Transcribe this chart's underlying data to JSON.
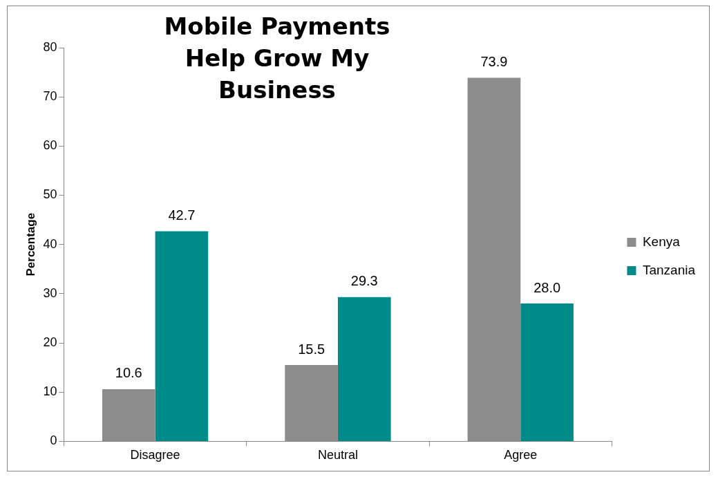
{
  "chart_data": {
    "type": "bar",
    "title": "Mobile Payments Help Grow My Business",
    "ylabel": "Percentage",
    "categories": [
      "Disagree",
      "Neutral",
      "Agree"
    ],
    "series": [
      {
        "name": "Kenya",
        "color": "#8c8c8c",
        "values": [
          10.6,
          15.5,
          73.9
        ],
        "value_labels": [
          "10.6",
          "15.5",
          "73.9"
        ]
      },
      {
        "name": "Tanzania",
        "color": "#008b8b",
        "values": [
          42.7,
          29.3,
          28.0
        ],
        "value_labels": [
          "42.7",
          "29.3",
          "28.0"
        ]
      }
    ],
    "ylim": [
      0,
      80
    ],
    "yticks": [
      0,
      10,
      20,
      30,
      40,
      50,
      60,
      70,
      80
    ],
    "grid": false,
    "legend": "right"
  }
}
